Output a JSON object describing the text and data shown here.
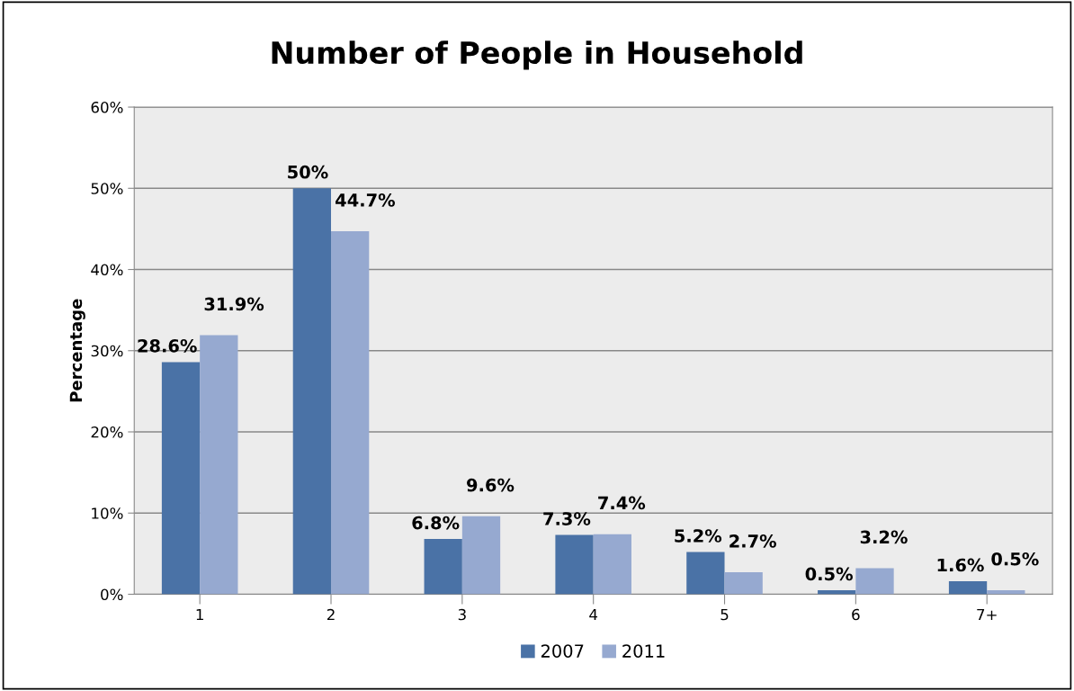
{
  "chart_data": {
    "type": "bar",
    "title": "Number of People in Household",
    "ylabel": "Percentage",
    "categories": [
      "1",
      "2",
      "3",
      "4",
      "5",
      "6",
      "7+"
    ],
    "series": [
      {
        "name": "2007",
        "color": "#4a72a6",
        "values": [
          28.6,
          50,
          6.8,
          7.3,
          5.2,
          0.5,
          1.6
        ],
        "value_labels": [
          "28.6%",
          "50%",
          "6.8%",
          "7.3%",
          "5.2%",
          "0.5%",
          "1.6%"
        ]
      },
      {
        "name": "2011",
        "color": "#96a9d0",
        "values": [
          31.9,
          44.7,
          9.6,
          7.4,
          2.7,
          3.2,
          0.5
        ],
        "value_labels": [
          "31.9%",
          "44.7%",
          "9.6%",
          "7.4%",
          "2.7%",
          "3.2%",
          "0.5%"
        ]
      }
    ],
    "ylim": [
      0,
      60
    ],
    "yticks": [
      {
        "value": 0,
        "label": "0%"
      },
      {
        "value": 10,
        "label": "10%"
      },
      {
        "value": 20,
        "label": "20%"
      },
      {
        "value": 30,
        "label": "30%"
      },
      {
        "value": 40,
        "label": "40%"
      },
      {
        "value": 50,
        "label": "50%"
      },
      {
        "value": 60,
        "label": "60%"
      }
    ],
    "grid": "y",
    "legend": "bottom"
  }
}
